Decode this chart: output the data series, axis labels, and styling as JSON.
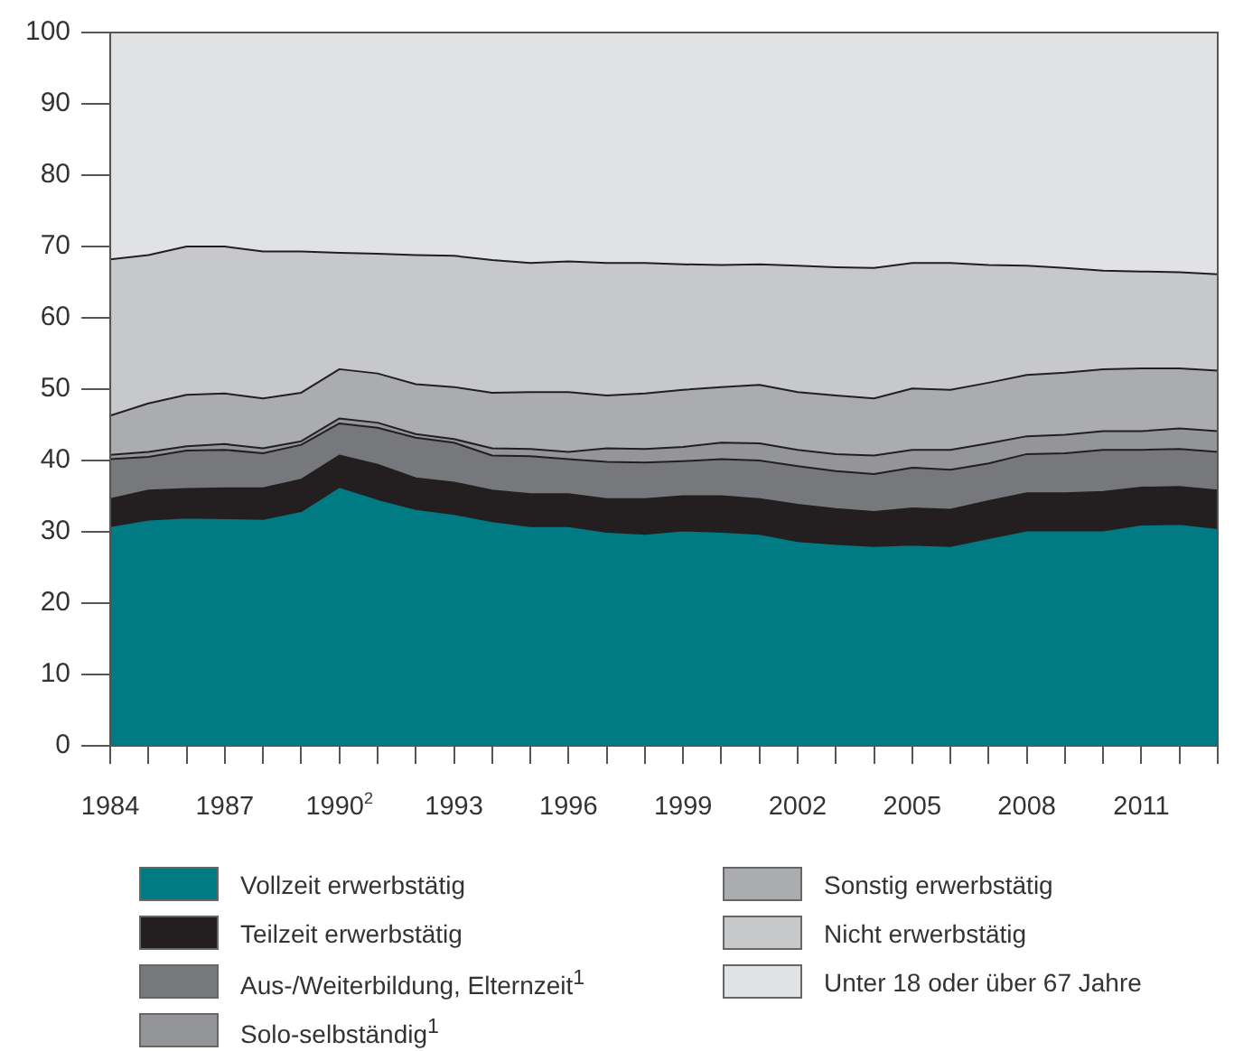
{
  "chart_data": {
    "type": "area",
    "stacked": true,
    "legend": "bottom",
    "x": [
      1984,
      1985,
      1986,
      1987,
      1988,
      1989,
      1990,
      1991,
      1992,
      1993,
      1994,
      1995,
      1996,
      1997,
      1998,
      1999,
      2000,
      2001,
      2002,
      2003,
      2004,
      2005,
      2006,
      2007,
      2008,
      2009,
      2010,
      2011,
      2012,
      2013
    ],
    "xlim": [
      1984,
      2013
    ],
    "xticks": [
      1984,
      {
        "value": 1985,
        "label": null
      },
      {
        "value": 1986,
        "label": null
      },
      1987,
      {
        "value": 1988,
        "label": null
      },
      {
        "value": 1989,
        "label": null
      },
      {
        "value": 1990,
        "label": "1990$^{2}$"
      },
      {
        "value": 1991,
        "label": null
      },
      {
        "value": 1992,
        "label": null
      },
      1993,
      {
        "value": 1994,
        "label": null
      },
      {
        "value": 1995,
        "label": null
      },
      1996,
      {
        "value": 1997,
        "label": null
      },
      {
        "value": 1998,
        "label": null
      },
      1999,
      {
        "value": 2000,
        "label": null
      },
      {
        "value": 2001,
        "label": null
      },
      2002,
      {
        "value": 2003,
        "label": null
      },
      {
        "value": 2004,
        "label": null
      },
      2005,
      {
        "value": 2006,
        "label": null
      },
      {
        "value": 2007,
        "label": null
      },
      2008,
      {
        "value": 2009,
        "label": null
      },
      {
        "value": 2010,
        "label": null
      },
      2011,
      {
        "value": 2012,
        "label": null
      },
      {
        "value": 2013,
        "label": null
      }
    ],
    "ylim": [
      0,
      100
    ],
    "yticks": [
      0,
      10,
      20,
      30,
      40,
      50,
      60,
      70,
      80,
      90,
      100
    ],
    "series": [
      {
        "name": "Vollzeit erwerbstätig",
        "color": "#007b84",
        "values": [
          30.8,
          31.7,
          32.0,
          31.9,
          31.8,
          32.9,
          36.3,
          34.6,
          33.2,
          32.5,
          31.5,
          30.8,
          30.8,
          30.0,
          29.7,
          30.2,
          30.0,
          29.7,
          28.7,
          28.3,
          28.0,
          28.2,
          28.0,
          29.1,
          30.2,
          30.2,
          30.2,
          31.0,
          31.1,
          30.5
        ]
      },
      {
        "name": "Teilzeit erwerbstätig",
        "color": "#231f20",
        "values": [
          3.8,
          4.1,
          4.0,
          4.2,
          4.3,
          4.4,
          4.4,
          4.8,
          4.3,
          4.4,
          4.3,
          4.5,
          4.5,
          4.6,
          4.9,
          4.8,
          5.0,
          4.9,
          5.1,
          4.9,
          4.8,
          5.1,
          5.1,
          5.2,
          5.2,
          5.2,
          5.4,
          5.2,
          5.2,
          5.3
        ]
      },
      {
        "name": "Aus-/Weiterbildung, Elternzeit$^{1}$",
        "color": "#77787b",
        "values": [
          5.6,
          4.7,
          5.4,
          5.4,
          4.9,
          4.9,
          4.5,
          5.2,
          5.7,
          5.6,
          4.9,
          5.3,
          4.9,
          5.2,
          5.1,
          4.9,
          5.2,
          5.4,
          5.4,
          5.3,
          5.3,
          5.7,
          5.6,
          5.3,
          5.5,
          5.6,
          5.9,
          5.3,
          5.3,
          5.4
        ]
      },
      {
        "name": "Solo-selbständig$^{1}$",
        "color": "#939598",
        "values": [
          0.6,
          0.7,
          0.6,
          0.8,
          0.7,
          0.5,
          0.7,
          0.7,
          0.5,
          0.5,
          1.0,
          1.0,
          1.0,
          1.9,
          1.9,
          2.0,
          2.3,
          2.4,
          2.3,
          2.4,
          2.6,
          2.5,
          2.8,
          2.8,
          2.5,
          2.6,
          2.6,
          2.6,
          2.9,
          2.9
        ]
      },
      {
        "name": "Sonstig erwerbstätig",
        "color": "#abacaf",
        "values": [
          5.5,
          6.8,
          7.2,
          7.1,
          7.0,
          6.8,
          6.9,
          6.9,
          7.0,
          7.3,
          7.8,
          8.0,
          8.4,
          7.4,
          7.8,
          8.0,
          7.8,
          8.2,
          8.1,
          8.2,
          8.0,
          8.6,
          8.4,
          8.5,
          8.6,
          8.7,
          8.7,
          8.8,
          8.4,
          8.5
        ]
      },
      {
        "name": "Nicht erwerbstätig",
        "color": "#c7c8ca",
        "values": [
          21.9,
          20.8,
          20.8,
          20.6,
          20.6,
          19.8,
          16.3,
          16.8,
          18.1,
          18.4,
          18.6,
          18.1,
          18.3,
          18.6,
          18.3,
          17.6,
          17.1,
          16.9,
          17.7,
          18.0,
          18.3,
          17.6,
          17.8,
          16.5,
          15.3,
          14.7,
          13.8,
          13.6,
          13.5,
          13.5
        ]
      },
      {
        "name": "Unter 18 oder über 67 Jahre",
        "color": "#e1e2e4",
        "values": [
          31.8,
          31.2,
          30.0,
          30.0,
          30.7,
          30.7,
          30.9,
          31.0,
          31.2,
          31.3,
          31.9,
          32.3,
          32.1,
          32.3,
          32.3,
          32.5,
          32.6,
          32.5,
          32.7,
          32.9,
          33.0,
          32.3,
          32.3,
          32.6,
          32.7,
          33.0,
          33.4,
          33.5,
          33.6,
          33.9
        ]
      }
    ]
  }
}
